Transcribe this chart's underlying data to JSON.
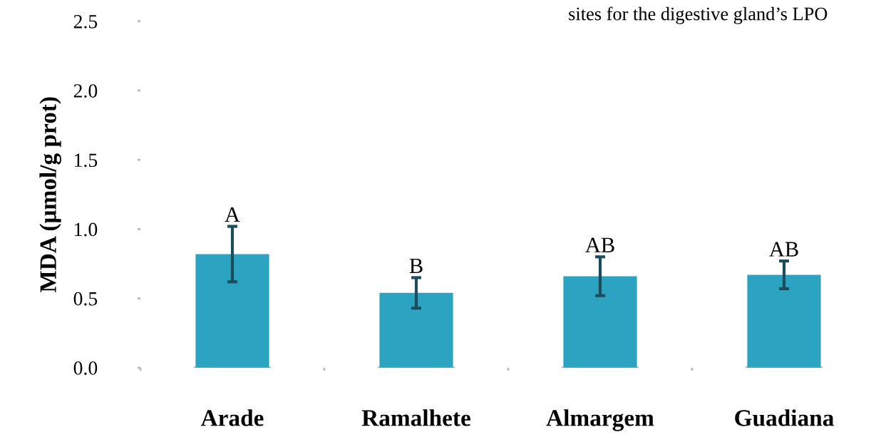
{
  "chart_data": {
    "type": "bar",
    "categories": [
      "Arade",
      "Ramalhete",
      "Almargem",
      "Guadiana"
    ],
    "values": [
      0.82,
      0.54,
      0.66,
      0.67
    ],
    "errors": [
      0.2,
      0.11,
      0.14,
      0.1
    ],
    "color": "#2ca3c0",
    "ylabel": "MDA (μmol/g prot)",
    "ylim": [
      0,
      2.5
    ],
    "yticks": [
      {
        "value": 0,
        "label": "0.0"
      },
      {
        "value": 0.5,
        "label": "0.5"
      },
      {
        "value": 1,
        "label": "1.0"
      },
      {
        "value": 1.5,
        "label": "1.5"
      },
      {
        "value": 2,
        "label": "2.0"
      },
      {
        "value": 2.5,
        "label": "2.5"
      }
    ],
    "grid": false,
    "annotations": [
      "sites for the digestive gland’s LPO",
      "A",
      "B",
      "AB",
      "AB"
    ]
  }
}
